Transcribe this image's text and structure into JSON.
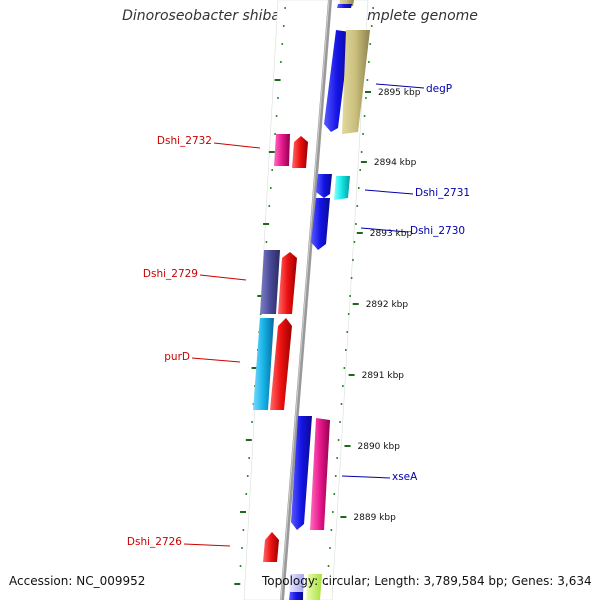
{
  "title": "Dinoroseobacter shibae DFL 12, complete genome",
  "footer": {
    "accession": "Accession: NC_009952",
    "topology": "Topology: circular; Length: 3,789,584 bp; Genes: 3,634"
  },
  "colors": {
    "backbone": "#8c8c8c",
    "tick": "#2e8b2e",
    "label_left": "#cc0000",
    "label_right": "#0000aa",
    "blue": "#1414e6",
    "khaki": "#c8bd7a",
    "red": "#ee1111",
    "pink": "#e8188c",
    "cyan": "#12e6e6",
    "navy": "#4a4a9a",
    "sky": "#14b4e8"
  },
  "scale": [
    {
      "label": "2895 kbp"
    },
    {
      "label": "2894 kbp"
    },
    {
      "label": "2893 kbp"
    },
    {
      "label": "2892 kbp"
    },
    {
      "label": "2891 kbp"
    },
    {
      "label": "2890 kbp"
    },
    {
      "label": "2889 kbp"
    }
  ],
  "gene_labels": [
    {
      "name": "degP",
      "side": "right"
    },
    {
      "name": "Dshi_2732",
      "side": "left"
    },
    {
      "name": "Dshi_2731",
      "side": "right"
    },
    {
      "name": "Dshi_2730",
      "side": "right"
    },
    {
      "name": "Dshi_2729",
      "side": "left"
    },
    {
      "name": "purD",
      "side": "left"
    },
    {
      "name": "xseA",
      "side": "right"
    },
    {
      "name": "Dshi_2726",
      "side": "left"
    }
  ]
}
